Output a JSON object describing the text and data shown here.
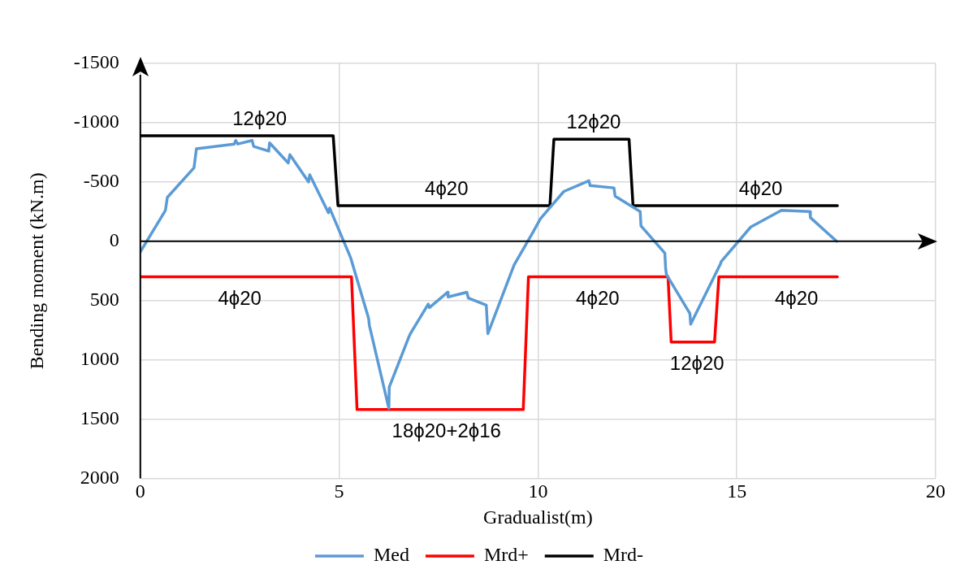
{
  "chart_data": {
    "type": "line",
    "xlabel": "Gradualist(m)",
    "ylabel": "Bending moment (kN.m)",
    "xlim": [
      0,
      20
    ],
    "xticks": [
      0,
      5,
      10,
      15,
      20
    ],
    "ylim": [
      2000,
      -1500
    ],
    "yticks": [
      -1500,
      -1000,
      -500,
      0,
      500,
      1000,
      1500,
      2000
    ],
    "grid": true,
    "legend": "bottom",
    "marker": "none",
    "line_style": "solid",
    "series": [
      {
        "name": "Med",
        "color": "#5b9bd5",
        "x": [
          0,
          0.63,
          0.68,
          1.35,
          1.41,
          2.36,
          2.4,
          2.45,
          2.81,
          2.85,
          3.23,
          3.25,
          3.72,
          3.76,
          4.23,
          4.26,
          4.73,
          4.76,
          5.29,
          5.74,
          5.76,
          6.25,
          6.26,
          6.75,
          6.79,
          7.24,
          7.27,
          7.73,
          7.74,
          8.21,
          8.25,
          8.7,
          8.74,
          9.4,
          9.88,
          10.06,
          10.65,
          11.28,
          11.31,
          11.91,
          11.94,
          12.57,
          12.59,
          13.19,
          13.21,
          13.23,
          13.82,
          13.84,
          14.59,
          14.61,
          15.35,
          16.12,
          16.84,
          16.85,
          17.51
        ],
        "values": [
          90,
          -260,
          -370,
          -620,
          -780,
          -820,
          -850,
          -820,
          -850,
          -800,
          -760,
          -830,
          -660,
          -730,
          -500,
          -560,
          -240,
          -280,
          140,
          650,
          710,
          1410,
          1230,
          810,
          780,
          530,
          560,
          430,
          470,
          430,
          480,
          540,
          780,
          200,
          -80,
          -190,
          -420,
          -510,
          -470,
          -450,
          -380,
          -250,
          -130,
          100,
          230,
          280,
          610,
          700,
          190,
          170,
          -120,
          -260,
          -250,
          -200,
          0
        ]
      },
      {
        "name": "Mrd+",
        "color": "#ff0000",
        "x": [
          0,
          5.31,
          5.45,
          9.63,
          9.76,
          13.27,
          13.35,
          14.44,
          14.55,
          17.53
        ],
        "values": [
          300,
          300,
          1420,
          1420,
          300,
          300,
          850,
          850,
          300,
          300
        ]
      },
      {
        "name": "Mrd-",
        "color": "#000000",
        "x": [
          0,
          4.85,
          4.97,
          10.3,
          10.4,
          12.29,
          12.39,
          17.53
        ],
        "values": [
          -890,
          -890,
          -300,
          -300,
          -860,
          -860,
          -300,
          -300
        ]
      }
    ],
    "annotations": [
      {
        "text": "12ϕ20",
        "x": 3.0,
        "y": -890
      },
      {
        "text": "4ϕ20",
        "x": 7.7,
        "y": -300
      },
      {
        "text": "12ϕ20",
        "x": 11.4,
        "y": -860
      },
      {
        "text": "4ϕ20",
        "x": 15.6,
        "y": -300
      },
      {
        "text": "4ϕ20",
        "x": 2.5,
        "y": 300
      },
      {
        "text": "18ϕ20+2ϕ16",
        "x": 7.7,
        "y": 1420
      },
      {
        "text": "4ϕ20",
        "x": 11.5,
        "y": 300
      },
      {
        "text": "12ϕ20",
        "x": 14.0,
        "y": 850
      },
      {
        "text": "4ϕ20",
        "x": 16.5,
        "y": 300
      }
    ]
  }
}
